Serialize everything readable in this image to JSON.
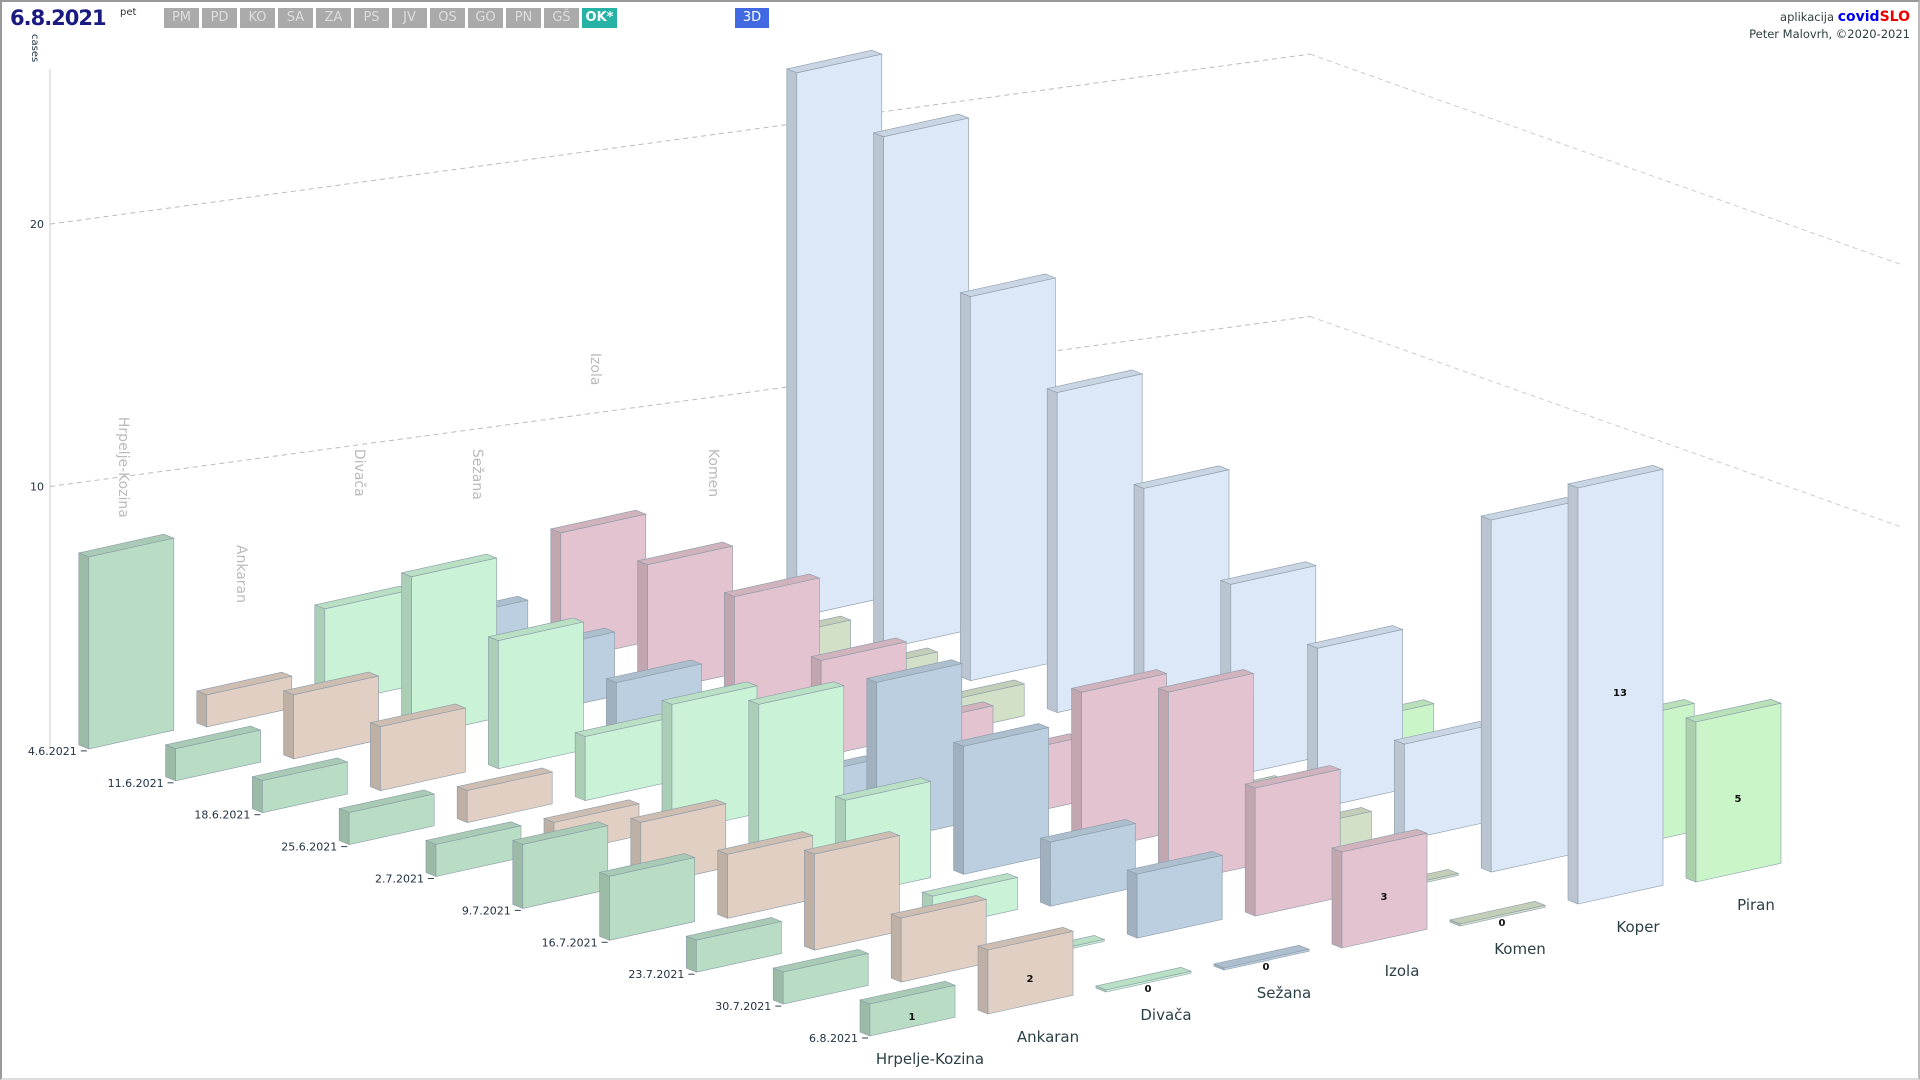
{
  "header": {
    "date": "6.8.2021",
    "day": "pet",
    "region_buttons": [
      "PM",
      "PD",
      "KO",
      "SA",
      "ZA",
      "PS",
      "JV",
      "OS",
      "GO",
      "PN",
      "GŠ",
      "OK*"
    ],
    "active_region": "OK*",
    "view_button": "3D"
  },
  "credit": {
    "prefix": "aplikacija",
    "brand_a": "covid",
    "brand_b": "SLO",
    "author": "Peter Malovrh, ©2020-2021"
  },
  "chart_data": {
    "type": "bar3d",
    "ylabel": "cases",
    "yticks": [
      10,
      20
    ],
    "ylim": [
      0,
      20
    ],
    "dates": [
      "4.6.2021",
      "11.6.2021",
      "18.6.2021",
      "25.6.2021",
      "2.7.2021",
      "9.7.2021",
      "16.7.2021",
      "23.7.2021",
      "30.7.2021",
      "6.8.2021"
    ],
    "series": [
      {
        "name": "Hrpelje-Kozina",
        "color": "#b8dcc4",
        "values": [
          6,
          1,
          1,
          1,
          1,
          2,
          2,
          1,
          1,
          1
        ]
      },
      {
        "name": "Ankaran",
        "color": "#e0cfc2",
        "values": [
          1,
          2,
          2,
          1,
          1,
          2,
          2,
          3,
          2,
          2
        ]
      },
      {
        "name": "Divača",
        "color": "#c9f2d6",
        "values": [
          3,
          5,
          4,
          2,
          4,
          5,
          3,
          1,
          0,
          0
        ]
      },
      {
        "name": "Sežana",
        "color": "#bccfe0",
        "values": [
          2,
          2,
          2,
          1,
          1,
          5,
          4,
          2,
          2,
          0
        ]
      },
      {
        "name": "Izola",
        "color": "#e3c3cf",
        "values": [
          4,
          4,
          4,
          3,
          2,
          2,
          5,
          6,
          4,
          3
        ]
      },
      {
        "name": "Komen",
        "color": "#d3e0c8",
        "values": [
          0,
          1,
          1,
          1,
          0,
          1,
          1,
          1,
          0,
          0
        ]
      },
      {
        "name": "Koper",
        "color": "#dce8f7",
        "values": [
          17,
          16,
          12,
          10,
          8,
          6,
          5,
          3,
          11,
          13
        ]
      },
      {
        "name": "Piran",
        "color": "#c9f5c9",
        "values": [
          3,
          3,
          2,
          2,
          1,
          1,
          1,
          2,
          4,
          5
        ]
      }
    ]
  }
}
